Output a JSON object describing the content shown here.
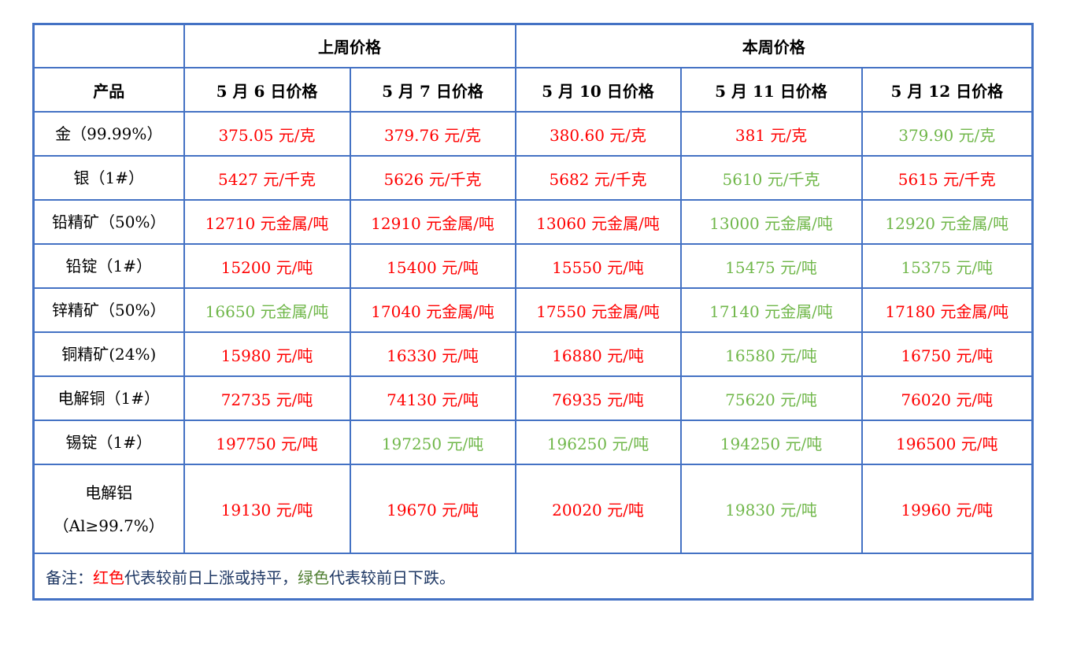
{
  "colors": {
    "red": "#ff0000",
    "green": "#70b74a",
    "note_green": "#538135",
    "navy": "#1f3864",
    "border_blue": "#4472c4",
    "header_text": "#000000"
  },
  "table": {
    "group_headers": [
      {
        "label": "",
        "span": 1
      },
      {
        "label": "上周价格",
        "span": 2
      },
      {
        "label": "本周价格",
        "span": 3
      }
    ],
    "columns": [
      "产品",
      "5 月 6 日价格",
      "5 月 7 日价格",
      "5 月 10 日价格",
      "5 月 11 日价格",
      "5 月 12 日价格"
    ],
    "rows": [
      {
        "product": "金（99.99%）",
        "tall": false,
        "values": [
          {
            "text": "375.05 元/克",
            "color": "red"
          },
          {
            "text": "379.76 元/克",
            "color": "red"
          },
          {
            "text": "380.60 元/克",
            "color": "red"
          },
          {
            "text": "381 元/克",
            "color": "red"
          },
          {
            "text": "379.90 元/克",
            "color": "green"
          }
        ]
      },
      {
        "product": "银（1#）",
        "tall": false,
        "values": [
          {
            "text": "5427 元/千克",
            "color": "red"
          },
          {
            "text": "5626 元/千克",
            "color": "red"
          },
          {
            "text": "5682 元/千克",
            "color": "red"
          },
          {
            "text": "5610 元/千克",
            "color": "green"
          },
          {
            "text": "5615 元/千克",
            "color": "red"
          }
        ]
      },
      {
        "product": "铅精矿（50%）",
        "tall": false,
        "values": [
          {
            "text": "12710 元金属/吨",
            "color": "red"
          },
          {
            "text": "12910 元金属/吨",
            "color": "red"
          },
          {
            "text": "13060 元金属/吨",
            "color": "red"
          },
          {
            "text": "13000 元金属/吨",
            "color": "green"
          },
          {
            "text": "12920 元金属/吨",
            "color": "green"
          }
        ]
      },
      {
        "product": "铅锭（1#）",
        "tall": false,
        "values": [
          {
            "text": "15200 元/吨",
            "color": "red"
          },
          {
            "text": "15400 元/吨",
            "color": "red"
          },
          {
            "text": "15550 元/吨",
            "color": "red"
          },
          {
            "text": "15475 元/吨",
            "color": "green"
          },
          {
            "text": "15375 元/吨",
            "color": "green"
          }
        ]
      },
      {
        "product": "锌精矿（50%）",
        "tall": false,
        "values": [
          {
            "text": "16650 元金属/吨",
            "color": "green"
          },
          {
            "text": "17040 元金属/吨",
            "color": "red"
          },
          {
            "text": "17550 元金属/吨",
            "color": "red"
          },
          {
            "text": "17140 元金属/吨",
            "color": "green"
          },
          {
            "text": "17180 元金属/吨",
            "color": "red"
          }
        ]
      },
      {
        "product": "铜精矿(24%)",
        "tall": false,
        "values": [
          {
            "text": "15980 元/吨",
            "color": "red"
          },
          {
            "text": "16330 元/吨",
            "color": "red"
          },
          {
            "text": "16880 元/吨",
            "color": "red"
          },
          {
            "text": "16580 元/吨",
            "color": "green"
          },
          {
            "text": "16750 元/吨",
            "color": "red"
          }
        ]
      },
      {
        "product": "电解铜（1#）",
        "tall": false,
        "values": [
          {
            "text": "72735 元/吨",
            "color": "red"
          },
          {
            "text": "74130 元/吨",
            "color": "red"
          },
          {
            "text": "76935 元/吨",
            "color": "red"
          },
          {
            "text": "75620 元/吨",
            "color": "green"
          },
          {
            "text": "76020 元/吨",
            "color": "red"
          }
        ]
      },
      {
        "product": "锡锭（1#）",
        "tall": false,
        "values": [
          {
            "text": "197750 元/吨",
            "color": "red"
          },
          {
            "text": "197250 元/吨",
            "color": "green"
          },
          {
            "text": "196250 元/吨",
            "color": "green"
          },
          {
            "text": "194250 元/吨",
            "color": "green"
          },
          {
            "text": "196500 元/吨",
            "color": "red"
          }
        ]
      },
      {
        "product": "电解铝（Al≥99.7%）",
        "tall": true,
        "values": [
          {
            "text": "19130 元/吨",
            "color": "red"
          },
          {
            "text": "19670 元/吨",
            "color": "red"
          },
          {
            "text": "20020 元/吨",
            "color": "red"
          },
          {
            "text": "19830 元/吨",
            "color": "green"
          },
          {
            "text": "19960 元/吨",
            "color": "red"
          }
        ]
      }
    ],
    "note": {
      "parts": [
        {
          "text": "备注：",
          "color": "navy"
        },
        {
          "text": "红色",
          "color": "red"
        },
        {
          "text": "代表较前日上涨或持平，",
          "color": "navy"
        },
        {
          "text": "绿色",
          "color": "note_green"
        },
        {
          "text": "代表较前日下跌。",
          "color": "navy"
        }
      ]
    }
  }
}
